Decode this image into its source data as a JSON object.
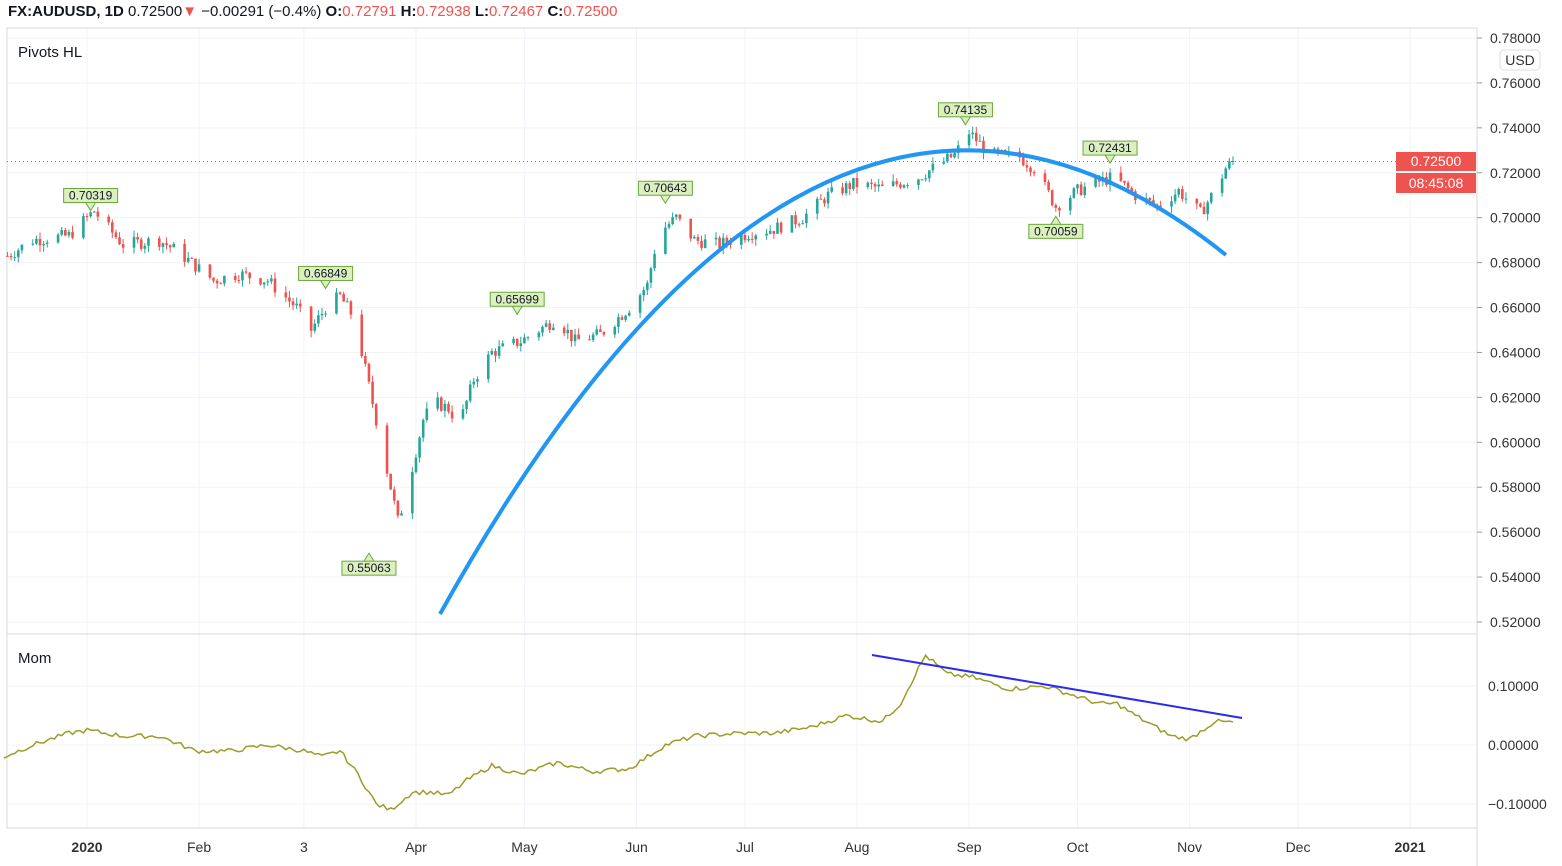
{
  "header": {
    "symbol": "FX:AUDUSD, 1D",
    "last": "0.72500",
    "change": "−0.00291 (−0.4%)",
    "o_label": "O:",
    "o": "0.72791",
    "h_label": "H:",
    "h": "0.72938",
    "l_label": "L:",
    "l": "0.72467",
    "c_label": "C:",
    "c": "0.72500"
  },
  "price_badge": "0.72500",
  "countdown": "08:45:08",
  "currency": "USD",
  "colors": {
    "up": "#26a69a",
    "down": "#ef5350",
    "curve": "#2196f3",
    "mom": "#9c9c28",
    "trend": "#2a2af0"
  },
  "chart_data": [
    {
      "type": "candlestick",
      "title": "Pivots HL",
      "ylim": [
        0.51,
        0.78
      ],
      "yticks": [
        "0.78000",
        "0.76000",
        "0.74000",
        "0.72000",
        "0.70000",
        "0.68000",
        "0.66000",
        "0.64000",
        "0.62000",
        "0.60000",
        "0.58000",
        "0.56000",
        "0.54000",
        "0.52000"
      ],
      "close_anchors": [
        [
          -22,
          0.683
        ],
        [
          -15,
          0.69
        ],
        [
          -5,
          0.692
        ],
        [
          0,
          0.7
        ],
        [
          2,
          0.703
        ],
        [
          5,
          0.697
        ],
        [
          10,
          0.688
        ],
        [
          20,
          0.69
        ],
        [
          25,
          0.685
        ],
        [
          35,
          0.672
        ],
        [
          42,
          0.675
        ],
        [
          50,
          0.672
        ],
        [
          58,
          0.66
        ],
        [
          62,
          0.65
        ],
        [
          66,
          0.66
        ],
        [
          70,
          0.665
        ],
        [
          74,
          0.655
        ],
        [
          78,
          0.625
        ],
        [
          82,
          0.595
        ],
        [
          86,
          0.565
        ],
        [
          88,
          0.575
        ],
        [
          93,
          0.61
        ],
        [
          96,
          0.618
        ],
        [
          100,
          0.615
        ],
        [
          103,
          0.608
        ],
        [
          107,
          0.628
        ],
        [
          112,
          0.64
        ],
        [
          120,
          0.645
        ],
        [
          125,
          0.65
        ],
        [
          130,
          0.655
        ],
        [
          135,
          0.645
        ],
        [
          142,
          0.648
        ],
        [
          150,
          0.66
        ],
        [
          155,
          0.67
        ],
        [
          158,
          0.693
        ],
        [
          163,
          0.7
        ],
        [
          168,
          0.69
        ],
        [
          175,
          0.688
        ],
        [
          183,
          0.693
        ],
        [
          190,
          0.695
        ],
        [
          198,
          0.7
        ],
        [
          205,
          0.71
        ],
        [
          212,
          0.715
        ],
        [
          220,
          0.713
        ],
        [
          230,
          0.718
        ],
        [
          240,
          0.728
        ],
        [
          244,
          0.738
        ],
        [
          250,
          0.728
        ],
        [
          258,
          0.727
        ],
        [
          262,
          0.722
        ],
        [
          268,
          0.705
        ],
        [
          274,
          0.712
        ],
        [
          280,
          0.716
        ],
        [
          284,
          0.718
        ],
        [
          290,
          0.71
        ],
        [
          296,
          0.705
        ],
        [
          302,
          0.712
        ],
        [
          308,
          0.702
        ],
        [
          312,
          0.712
        ],
        [
          315,
          0.722
        ],
        [
          317,
          0.725
        ]
      ],
      "pivots": [
        {
          "day": 1,
          "price": 0.70319,
          "label": "0.70319",
          "type": "high"
        },
        {
          "day": 66,
          "price": 0.66849,
          "label": "0.66849",
          "type": "high"
        },
        {
          "day": 78,
          "price": 0.55063,
          "label": "0.55063",
          "type": "low"
        },
        {
          "day": 119,
          "price": 0.65699,
          "label": "0.65699",
          "type": "high"
        },
        {
          "day": 160,
          "price": 0.70643,
          "label": "0.70643",
          "type": "high"
        },
        {
          "day": 243,
          "price": 0.74135,
          "label": "0.74135",
          "type": "high"
        },
        {
          "day": 268,
          "price": 0.70059,
          "label": "0.70059",
          "type": "low"
        },
        {
          "day": 283,
          "price": 0.72431,
          "label": "0.72431",
          "type": "high"
        }
      ],
      "current_price": 0.725
    },
    {
      "type": "line",
      "title": "Mom",
      "ylim": [
        -0.115,
        0.17
      ],
      "yticks": [
        "0.10000",
        "0.00000",
        "−0.10000"
      ],
      "points": [
        [
          -23,
          -0.02
        ],
        [
          -15,
          0.0
        ],
        [
          -5,
          0.02
        ],
        [
          0,
          0.025
        ],
        [
          10,
          0.015
        ],
        [
          20,
          0.015
        ],
        [
          30,
          -0.01
        ],
        [
          40,
          -0.01
        ],
        [
          50,
          0.0
        ],
        [
          60,
          -0.01
        ],
        [
          65,
          -0.02
        ],
        [
          70,
          -0.01
        ],
        [
          75,
          -0.05
        ],
        [
          80,
          -0.1
        ],
        [
          84,
          -0.11
        ],
        [
          90,
          -0.08
        ],
        [
          95,
          -0.08
        ],
        [
          100,
          -0.085
        ],
        [
          105,
          -0.06
        ],
        [
          112,
          -0.035
        ],
        [
          120,
          -0.05
        ],
        [
          130,
          -0.03
        ],
        [
          140,
          -0.045
        ],
        [
          150,
          -0.04
        ],
        [
          160,
          0.0
        ],
        [
          168,
          0.015
        ],
        [
          180,
          0.02
        ],
        [
          190,
          0.02
        ],
        [
          200,
          0.03
        ],
        [
          210,
          0.05
        ],
        [
          220,
          0.04
        ],
        [
          225,
          0.07
        ],
        [
          230,
          0.13
        ],
        [
          232,
          0.152
        ],
        [
          238,
          0.12
        ],
        [
          245,
          0.115
        ],
        [
          255,
          0.095
        ],
        [
          265,
          0.1
        ],
        [
          275,
          0.08
        ],
        [
          280,
          0.07
        ],
        [
          285,
          0.07
        ],
        [
          290,
          0.05
        ],
        [
          300,
          0.015
        ],
        [
          305,
          0.01
        ],
        [
          312,
          0.04
        ],
        [
          317,
          0.038
        ]
      ]
    }
  ],
  "xaxis": {
    "labels": [
      {
        "t": "2020",
        "day": 0,
        "bold": true
      },
      {
        "t": "Feb",
        "day": 31
      },
      {
        "t": "3",
        "day": 60
      },
      {
        "t": "Apr",
        "day": 91
      },
      {
        "t": "May",
        "day": 121
      },
      {
        "t": "Jun",
        "day": 152
      },
      {
        "t": "Jul",
        "day": 182
      },
      {
        "t": "Aug",
        "day": 213
      },
      {
        "t": "Sep",
        "day": 244
      },
      {
        "t": "Oct",
        "day": 274
      },
      {
        "t": "Nov",
        "day": 305
      },
      {
        "t": "Dec",
        "day": 335
      },
      {
        "t": "2021",
        "day": 366,
        "bold": true
      }
    ]
  }
}
